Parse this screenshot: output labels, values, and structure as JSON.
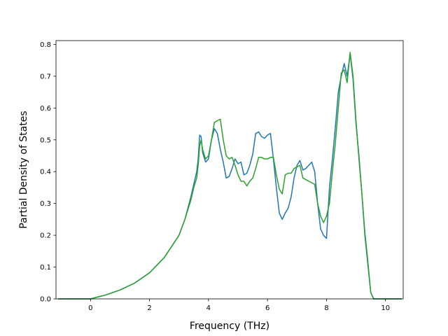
{
  "chart_data": {
    "type": "line",
    "title": "",
    "xlabel": "Frequency (THz)",
    "ylabel": "Partial Density of States",
    "xlim": [
      -1.17,
      10.6
    ],
    "ylim": [
      0.0,
      0.812
    ],
    "xticks": [
      0,
      2,
      4,
      6,
      8,
      10
    ],
    "yticks": [
      0.0,
      0.1,
      0.2,
      0.3,
      0.4,
      0.5,
      0.6,
      0.7,
      0.8
    ],
    "xtick_labels": [
      "0",
      "2",
      "4",
      "6",
      "8",
      "10"
    ],
    "ytick_labels": [
      "0.0",
      "0.1",
      "0.2",
      "0.3",
      "0.4",
      "0.5",
      "0.6",
      "0.7",
      "0.8"
    ],
    "grid": false,
    "legend": null,
    "series": [
      {
        "color": "#1f77b4",
        "x": [
          -1.1,
          0.0,
          0.2,
          0.5,
          1.0,
          1.5,
          2.0,
          2.5,
          3.0,
          3.2,
          3.4,
          3.5,
          3.6,
          3.65,
          3.7,
          3.75,
          3.8,
          3.9,
          4.0,
          4.1,
          4.2,
          4.3,
          4.4,
          4.5,
          4.6,
          4.7,
          4.8,
          4.9,
          5.0,
          5.1,
          5.2,
          5.3,
          5.4,
          5.5,
          5.6,
          5.7,
          5.8,
          5.9,
          6.0,
          6.1,
          6.2,
          6.3,
          6.4,
          6.5,
          6.6,
          6.7,
          6.8,
          6.9,
          7.0,
          7.1,
          7.2,
          7.3,
          7.4,
          7.5,
          7.6,
          7.7,
          7.8,
          7.9,
          8.0,
          8.1,
          8.2,
          8.3,
          8.4,
          8.5,
          8.6,
          8.7,
          8.8,
          8.9,
          9.0,
          9.1,
          9.2,
          9.3,
          9.4,
          9.5,
          9.6,
          9.65,
          9.7,
          10.2,
          10.55
        ],
        "y": [
          0.0,
          0.0,
          0.005,
          0.012,
          0.028,
          0.05,
          0.082,
          0.13,
          0.2,
          0.25,
          0.32,
          0.36,
          0.4,
          0.44,
          0.515,
          0.51,
          0.46,
          0.43,
          0.44,
          0.5,
          0.535,
          0.52,
          0.47,
          0.43,
          0.38,
          0.385,
          0.41,
          0.44,
          0.425,
          0.43,
          0.39,
          0.395,
          0.42,
          0.455,
          0.52,
          0.525,
          0.51,
          0.505,
          0.515,
          0.52,
          0.44,
          0.35,
          0.27,
          0.25,
          0.27,
          0.285,
          0.32,
          0.38,
          0.42,
          0.435,
          0.405,
          0.41,
          0.42,
          0.43,
          0.4,
          0.3,
          0.22,
          0.2,
          0.19,
          0.35,
          0.44,
          0.54,
          0.65,
          0.7,
          0.74,
          0.7,
          0.77,
          0.69,
          0.55,
          0.45,
          0.33,
          0.2,
          0.11,
          0.02,
          0.0,
          0.0,
          0.0,
          0.0,
          0.0
        ]
      },
      {
        "color": "#2ca02c",
        "x": [
          -1.1,
          0.0,
          0.2,
          0.5,
          1.0,
          1.5,
          2.0,
          2.5,
          3.0,
          3.2,
          3.4,
          3.5,
          3.6,
          3.65,
          3.7,
          3.75,
          3.8,
          3.9,
          4.0,
          4.1,
          4.2,
          4.3,
          4.4,
          4.5,
          4.6,
          4.7,
          4.8,
          4.9,
          5.0,
          5.1,
          5.2,
          5.3,
          5.4,
          5.5,
          5.6,
          5.7,
          5.8,
          5.9,
          6.0,
          6.1,
          6.2,
          6.3,
          6.4,
          6.5,
          6.6,
          6.7,
          6.8,
          6.9,
          7.0,
          7.1,
          7.2,
          7.3,
          7.4,
          7.5,
          7.6,
          7.7,
          7.8,
          7.9,
          8.0,
          8.1,
          8.2,
          8.3,
          8.4,
          8.5,
          8.6,
          8.7,
          8.8,
          8.9,
          9.0,
          9.1,
          9.2,
          9.3,
          9.4,
          9.5,
          9.6,
          9.65,
          9.7,
          10.2,
          10.55
        ],
        "y": [
          0.0,
          0.0,
          0.005,
          0.012,
          0.028,
          0.05,
          0.082,
          0.13,
          0.2,
          0.25,
          0.31,
          0.35,
          0.38,
          0.42,
          0.48,
          0.5,
          0.47,
          0.44,
          0.45,
          0.5,
          0.555,
          0.56,
          0.565,
          0.5,
          0.45,
          0.44,
          0.445,
          0.42,
          0.39,
          0.37,
          0.37,
          0.355,
          0.37,
          0.38,
          0.41,
          0.445,
          0.445,
          0.44,
          0.44,
          0.445,
          0.445,
          0.39,
          0.345,
          0.33,
          0.39,
          0.395,
          0.395,
          0.41,
          0.415,
          0.42,
          0.38,
          0.375,
          0.37,
          0.365,
          0.36,
          0.3,
          0.26,
          0.24,
          0.26,
          0.3,
          0.4,
          0.49,
          0.6,
          0.71,
          0.72,
          0.68,
          0.775,
          0.7,
          0.56,
          0.44,
          0.33,
          0.21,
          0.12,
          0.02,
          0.0,
          0.0,
          0.0,
          0.0,
          0.0
        ]
      }
    ]
  }
}
